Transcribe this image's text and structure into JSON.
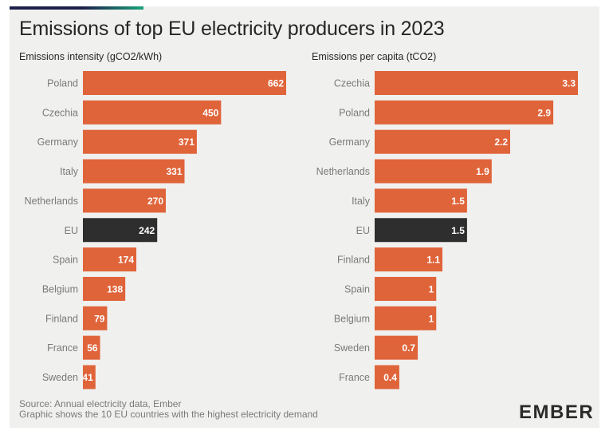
{
  "title": "Emissions of top EU electricity producers in 2023",
  "colors": {
    "bar": "#e0643a",
    "highlight": "#2e2e2e",
    "background": "#f0f0ef"
  },
  "chart_data": [
    {
      "type": "bar",
      "orientation": "horizontal",
      "title": "Emissions intensity (gCO2/kWh)",
      "categories": [
        "Poland",
        "Czechia",
        "Germany",
        "Italy",
        "Netherlands",
        "EU",
        "Spain",
        "Belgium",
        "Finland",
        "France",
        "Sweden"
      ],
      "values": [
        662,
        450,
        371,
        331,
        270,
        242,
        174,
        138,
        79,
        56,
        41
      ],
      "value_labels": [
        "662",
        "450",
        "371",
        "331",
        "270",
        "242",
        "174",
        "138",
        "79",
        "56",
        "41"
      ],
      "highlight": "EU",
      "xlim": [
        0,
        662
      ]
    },
    {
      "type": "bar",
      "orientation": "horizontal",
      "title": "Emissions per capita (tCO2)",
      "categories": [
        "Czechia",
        "Poland",
        "Germany",
        "Netherlands",
        "Italy",
        "EU",
        "Finland",
        "Spain",
        "Belgium",
        "Sweden",
        "France"
      ],
      "values": [
        3.3,
        2.9,
        2.2,
        1.9,
        1.5,
        1.5,
        1.1,
        1,
        1,
        0.7,
        0.4
      ],
      "value_labels": [
        "3.3",
        "2.9",
        "2.2",
        "1.9",
        "1.5",
        "1.5",
        "1.1",
        "1",
        "1",
        "0.7",
        "0.4"
      ],
      "highlight": "EU",
      "xlim": [
        0,
        3.3
      ]
    }
  ],
  "footer": {
    "source": "Source: Annual electricity data, Ember",
    "note": "Graphic shows the 10 EU countries with the highest electricity demand"
  },
  "logo": "EMBER"
}
